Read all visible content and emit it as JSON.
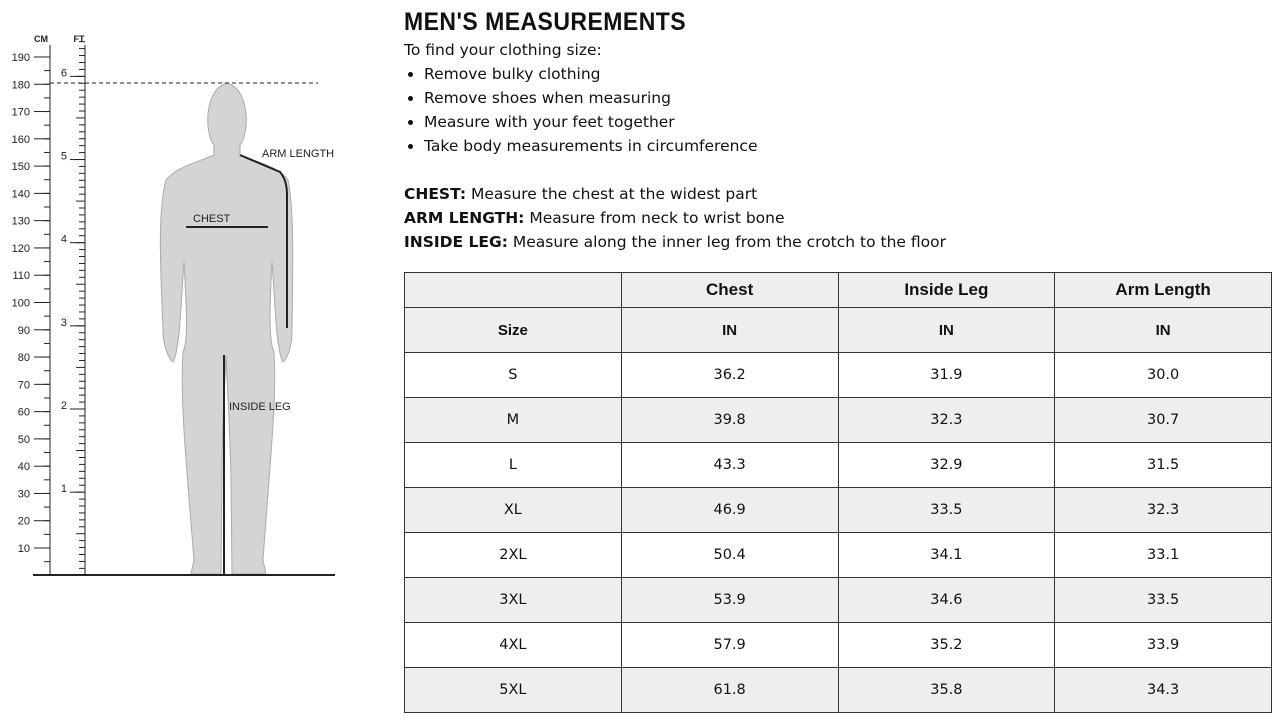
{
  "figure": {
    "cm_label": "CM",
    "ft_label": "FT",
    "cm_ticks": [
      10,
      20,
      30,
      40,
      50,
      60,
      70,
      80,
      90,
      100,
      110,
      120,
      130,
      140,
      150,
      160,
      170,
      180,
      190
    ],
    "ft_ticks": [
      1,
      2,
      3,
      4,
      5,
      6
    ],
    "labels": {
      "arm_length": "ARM LENGTH",
      "chest": "CHEST",
      "inside_leg": "INSIDE LEG"
    }
  },
  "title": "MEN'S MEASUREMENTS",
  "intro": "To find your clothing size:",
  "tips": [
    "Remove bulky clothing",
    "Remove shoes when measuring",
    "Measure with your feet together",
    "Take body measurements in circumference"
  ],
  "definitions": [
    {
      "term": "CHEST:",
      "text": "Measure the chest at the widest part"
    },
    {
      "term": "ARM LENGTH:",
      "text": "Measure from neck to wrist bone"
    },
    {
      "term": "INSIDE LEG:",
      "text": "Measure along the inner leg from the crotch to the floor"
    }
  ],
  "table": {
    "columns": [
      "Chest",
      "Inside Leg",
      "Arm Length"
    ],
    "size_label": "Size",
    "units": [
      "IN",
      "IN",
      "IN"
    ],
    "rows": [
      [
        "S",
        "36.2",
        "31.9",
        "30.0"
      ],
      [
        "M",
        "39.8",
        "32.3",
        "30.7"
      ],
      [
        "L",
        "43.3",
        "32.9",
        "31.5"
      ],
      [
        "XL",
        "46.9",
        "33.5",
        "32.3"
      ],
      [
        "2XL",
        "50.4",
        "34.1",
        "33.1"
      ],
      [
        "3XL",
        "53.9",
        "34.6",
        "33.5"
      ],
      [
        "4XL",
        "57.9",
        "35.2",
        "33.9"
      ],
      [
        "5XL",
        "61.8",
        "35.8",
        "34.3"
      ]
    ]
  }
}
